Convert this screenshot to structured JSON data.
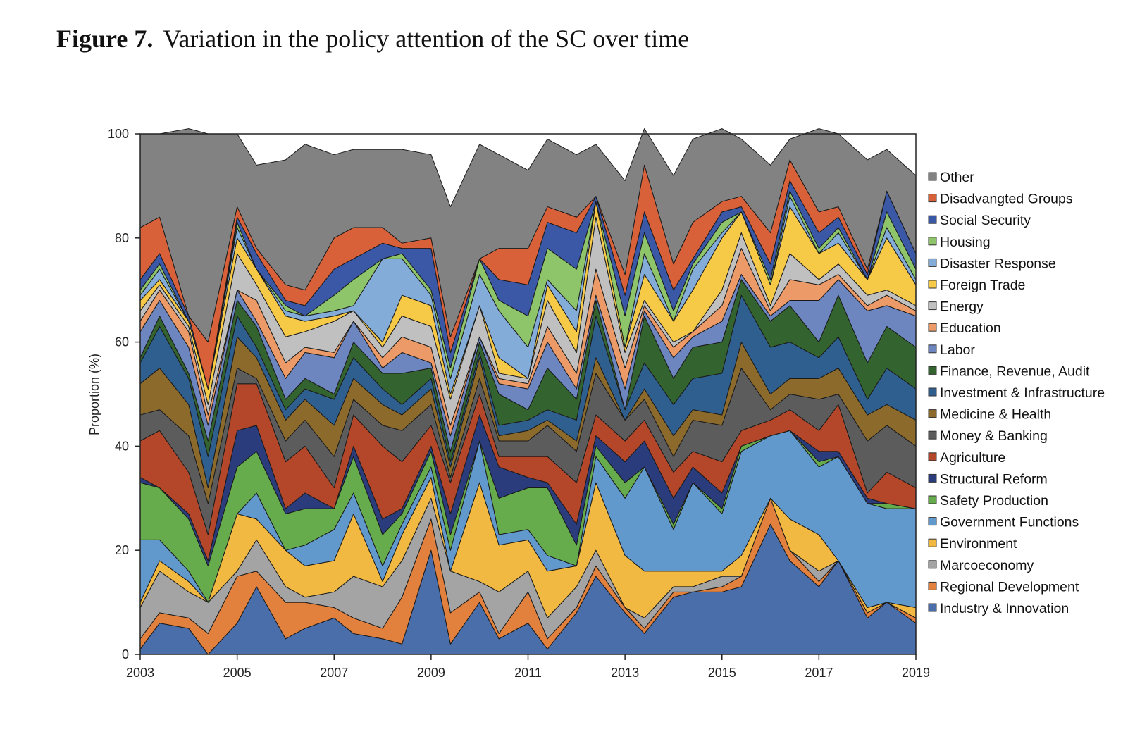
{
  "figure": {
    "label": "Figure 7.",
    "title": "Variation in the policy attention of the SC over time"
  },
  "chart_data": {
    "type": "area",
    "stacked": true,
    "title": "Variation in the policy attention of the SC over time",
    "xlabel": "",
    "ylabel": "Proportion (%)",
    "xlim": [
      2003,
      2019
    ],
    "ylim": [
      0,
      100
    ],
    "xticks": [
      "2003",
      "2005",
      "2007",
      "2009",
      "2011",
      "2013",
      "2015",
      "2017",
      "2019"
    ],
    "yticks": [
      "0",
      "20",
      "40",
      "60",
      "80",
      "100"
    ],
    "legend_position": "right",
    "x": [
      2003,
      2003.4,
      2004,
      2004.4,
      2005,
      2005.4,
      2006,
      2006.4,
      2007,
      2007.4,
      2008,
      2008.4,
      2009,
      2009.4,
      2010,
      2010.4,
      2011,
      2011.4,
      2012,
      2012.4,
      2013,
      2013.4,
      2014,
      2014.4,
      2015,
      2015.4,
      2016,
      2016.4,
      2017,
      2017.4,
      2018,
      2018.4,
      2019
    ],
    "series": [
      {
        "name": "Industry & Innovation",
        "color": "#4a6eaa",
        "values": [
          1,
          6,
          5,
          0,
          6,
          13,
          3,
          5,
          7,
          4,
          3,
          2,
          20,
          2,
          10,
          3,
          6,
          1,
          8,
          15,
          8,
          4,
          11,
          12,
          12,
          13,
          25,
          18,
          13,
          18,
          7,
          10,
          6
        ]
      },
      {
        "name": "Regional Development",
        "color": "#e1813d",
        "values": [
          2,
          2,
          2,
          4,
          9,
          3,
          7,
          5,
          2,
          3,
          2,
          9,
          6,
          6,
          2,
          1,
          6,
          2,
          1,
          2,
          1,
          1,
          1,
          0,
          1,
          2,
          5,
          2,
          1,
          0,
          1,
          0,
          1
        ]
      },
      {
        "name": "Marcoeconomy",
        "color": "#a4a4a4",
        "values": [
          6,
          8,
          5,
          6,
          1,
          6,
          3,
          1,
          3,
          8,
          8,
          7,
          4,
          8,
          2,
          8,
          4,
          4,
          4,
          3,
          0,
          2,
          1,
          1,
          2,
          0,
          0,
          0,
          2,
          0,
          0,
          0,
          0
        ]
      },
      {
        "name": "Environment",
        "color": "#f2b942",
        "values": [
          1,
          2,
          2,
          0,
          11,
          4,
          7,
          6,
          6,
          12,
          1,
          5,
          4,
          0,
          19,
          9,
          6,
          9,
          4,
          13,
          10,
          9,
          3,
          3,
          1,
          4,
          0,
          6,
          7,
          0,
          1,
          0,
          2
        ]
      },
      {
        "name": "Government Functions",
        "color": "#6199cc",
        "values": [
          12,
          4,
          2,
          0,
          0,
          5,
          0,
          4,
          6,
          4,
          3,
          2,
          2,
          4,
          8,
          2,
          2,
          3,
          0,
          5,
          11,
          20,
          8,
          17,
          11,
          20,
          12,
          17,
          13,
          20,
          20,
          18,
          19
        ]
      },
      {
        "name": "Safety Production",
        "color": "#66ac4c",
        "values": [
          11,
          10,
          10,
          7,
          9,
          8,
          7,
          7,
          4,
          7,
          6,
          2,
          3,
          3,
          0,
          7,
          8,
          13,
          4,
          2,
          3,
          0,
          1,
          0,
          1,
          1,
          0,
          0,
          1,
          0,
          0,
          1,
          0
        ]
      },
      {
        "name": "Structural Reform",
        "color": "#2a3c7c",
        "values": [
          1,
          0,
          1,
          1,
          7,
          5,
          1,
          3,
          0,
          2,
          3,
          1,
          1,
          4,
          5,
          6,
          2,
          1,
          4,
          2,
          4,
          5,
          5,
          3,
          3,
          0,
          0,
          0,
          2,
          1,
          1,
          0,
          0
        ]
      },
      {
        "name": "Agriculture",
        "color": "#b4472a",
        "values": [
          7,
          11,
          8,
          5,
          9,
          8,
          9,
          9,
          4,
          6,
          14,
          9,
          4,
          6,
          4,
          2,
          4,
          5,
          8,
          4,
          4,
          4,
          5,
          3,
          6,
          3,
          3,
          4,
          4,
          9,
          1,
          6,
          4
        ]
      },
      {
        "name": "Money & Banking",
        "color": "#5c5c5c",
        "values": [
          5,
          4,
          7,
          6,
          3,
          1,
          4,
          5,
          6,
          3,
          4,
          6,
          4,
          1,
          3,
          3,
          3,
          6,
          6,
          8,
          4,
          4,
          3,
          6,
          7,
          12,
          2,
          3,
          6,
          2,
          10,
          9,
          8
        ]
      },
      {
        "name": "Medicine & Health",
        "color": "#8b6a2c",
        "values": [
          6,
          8,
          6,
          3,
          6,
          4,
          4,
          4,
          6,
          4,
          4,
          3,
          3,
          2,
          4,
          1,
          2,
          1,
          2,
          3,
          0,
          2,
          4,
          2,
          2,
          5,
          3,
          3,
          4,
          5,
          5,
          4,
          5
        ]
      },
      {
        "name": "Investment & Infrastructure",
        "color": "#2f5f8e",
        "values": [
          4,
          8,
          5,
          6,
          4,
          2,
          2,
          2,
          5,
          4,
          3,
          2,
          2,
          1,
          1,
          2,
          2,
          2,
          4,
          8,
          2,
          5,
          6,
          6,
          8,
          9,
          9,
          7,
          4,
          6,
          3,
          7,
          6
        ]
      },
      {
        "name": "Finance, Revenue, Audit",
        "color": "#33632e",
        "values": [
          1,
          2,
          1,
          3,
          3,
          4,
          2,
          2,
          1,
          3,
          3,
          6,
          2,
          2,
          2,
          6,
          2,
          8,
          4,
          3,
          0,
          9,
          5,
          6,
          6,
          3,
          5,
          7,
          3,
          8,
          7,
          8,
          8
        ]
      },
      {
        "name": "Labor",
        "color": "#6d86c0",
        "values": [
          5,
          3,
          5,
          3,
          2,
          1,
          4,
          5,
          7,
          4,
          1,
          4,
          1,
          3,
          1,
          2,
          4,
          5,
          2,
          1,
          4,
          1,
          4,
          2,
          4,
          1,
          1,
          1,
          8,
          3,
          10,
          4,
          6
        ]
      },
      {
        "name": "Education",
        "color": "#ec9a67",
        "values": [
          2,
          2,
          3,
          2,
          0,
          4,
          3,
          1,
          1,
          0,
          2,
          3,
          3,
          2,
          0,
          1,
          1,
          3,
          3,
          5,
          4,
          1,
          2,
          1,
          3,
          5,
          1,
          4,
          3,
          1,
          1,
          2,
          1
        ]
      },
      {
        "name": "Energy",
        "color": "#c0c0c0",
        "values": [
          2,
          1,
          1,
          2,
          7,
          3,
          5,
          3,
          6,
          2,
          2,
          4,
          4,
          5,
          6,
          1,
          1,
          5,
          4,
          10,
          3,
          1,
          1,
          0,
          3,
          3,
          1,
          5,
          1,
          2,
          2,
          1,
          1
        ]
      },
      {
        "name": "Foreign Trade",
        "color": "#f6c946",
        "values": [
          2,
          1,
          1,
          3,
          3,
          3,
          4,
          2,
          1,
          0,
          1,
          4,
          4,
          1,
          0,
          3,
          0,
          3,
          4,
          3,
          1,
          5,
          4,
          8,
          10,
          4,
          4,
          9,
          5,
          4,
          3,
          10,
          4
        ]
      },
      {
        "name": "Disaster Response",
        "color": "#84acd8",
        "values": [
          1,
          2,
          0,
          0,
          2,
          0,
          1,
          1,
          1,
          1,
          16,
          7,
          2,
          3,
          6,
          9,
          6,
          1,
          4,
          0,
          0,
          4,
          0,
          4,
          1,
          0,
          0,
          2,
          0,
          2,
          0,
          2,
          1
        ]
      },
      {
        "name": "Housing",
        "color": "#8ec46a",
        "values": [
          1,
          1,
          0,
          0,
          1,
          0,
          1,
          0,
          3,
          5,
          0,
          1,
          1,
          2,
          3,
          2,
          6,
          6,
          8,
          0,
          6,
          4,
          2,
          1,
          2,
          0,
          1,
          1,
          1,
          1,
          0,
          3,
          2
        ]
      },
      {
        "name": "Social Security",
        "color": "#3a58a6",
        "values": [
          2,
          2,
          1,
          0,
          1,
          3,
          1,
          2,
          5,
          4,
          3,
          1,
          8,
          3,
          0,
          4,
          6,
          5,
          7,
          1,
          4,
          4,
          4,
          1,
          2,
          1,
          3,
          2,
          3,
          2,
          1,
          4,
          3
        ]
      },
      {
        "name": "Disadvangted Groups",
        "color": "#d9613a",
        "values": [
          10,
          7,
          0,
          9,
          2,
          1,
          3,
          3,
          6,
          6,
          3,
          1,
          2,
          3,
          0,
          6,
          7,
          3,
          3,
          0,
          4,
          9,
          5,
          7,
          2,
          2,
          6,
          4,
          4,
          2,
          1,
          0,
          0
        ]
      },
      {
        "name": "Other",
        "color": "#818281",
        "values": [
          18,
          16,
          36,
          40,
          14,
          16,
          24,
          28,
          16,
          15,
          15,
          18,
          16,
          25,
          22,
          18,
          15,
          13,
          12,
          10,
          18,
          7,
          17,
          16,
          14,
          11,
          13,
          4,
          16,
          14,
          21,
          8,
          15
        ]
      }
    ]
  }
}
